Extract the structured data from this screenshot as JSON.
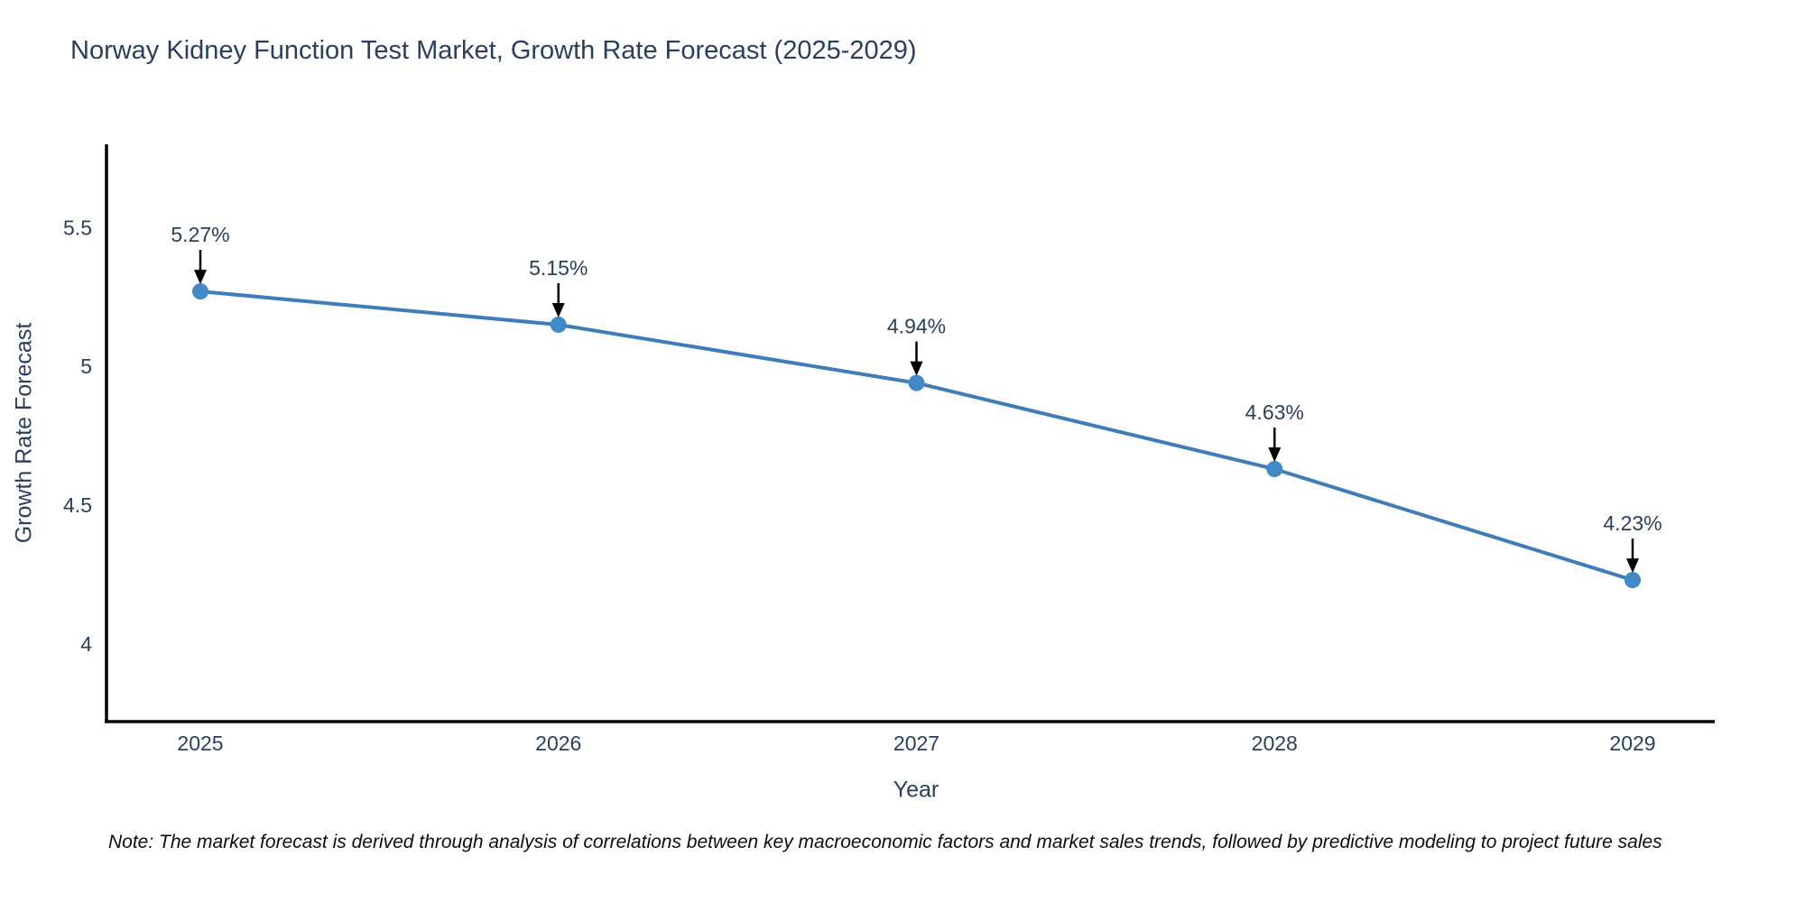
{
  "note": "Note: The market forecast is derived through analysis of correlations between key macroeconomic factors and market sales trends, followed by predictive modeling to project future sales",
  "chart_data": {
    "type": "line",
    "title": "Norway Kidney Function Test Market, Growth Rate Forecast (2025-2029)",
    "xlabel": "Year",
    "ylabel": "Growth Rate Forecast",
    "categories": [
      "2025",
      "2026",
      "2027",
      "2028",
      "2029"
    ],
    "values": [
      5.27,
      5.15,
      4.94,
      4.63,
      4.23
    ],
    "point_labels": [
      "5.27%",
      "5.15%",
      "4.94%",
      "4.63%",
      "4.23%"
    ],
    "yticks": [
      4,
      4.5,
      5,
      5.5
    ],
    "ylim": [
      3.72,
      5.8
    ],
    "grid": false,
    "legend": false,
    "annotations": "value labels with down arrows above each point",
    "colors": {
      "line": "#3e7cba",
      "marker": "#4189c7",
      "axis": "#000000",
      "text": "#2a3f5f",
      "arrow": "#000000"
    }
  }
}
